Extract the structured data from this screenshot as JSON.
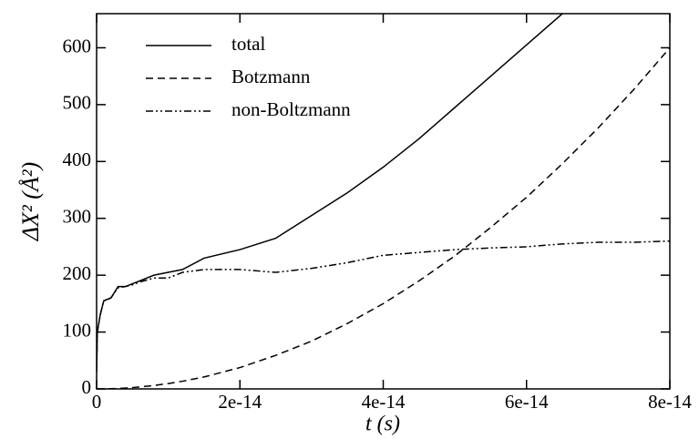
{
  "chart_data": {
    "type": "line",
    "xlabel": "t  (s)",
    "ylabel": "ΔX² (Å²)",
    "x": [
      0,
      1e-16,
      5e-16,
      1e-15,
      2e-15,
      3e-15,
      4e-15,
      5e-15,
      6e-15,
      8e-15,
      1e-14,
      1.2e-14,
      1.5e-14,
      2e-14,
      2.5e-14,
      3e-14,
      3.5e-14,
      4e-14,
      4.5e-14,
      5e-14,
      5.5e-14,
      6e-14,
      6.5e-14,
      7e-14,
      7.5e-14,
      8e-14
    ],
    "series": [
      {
        "name": "total",
        "color": "#000000",
        "dash": "none",
        "values": [
          30,
          100,
          130,
          155,
          160,
          180,
          180,
          185,
          190,
          200,
          205,
          210,
          230,
          245,
          265,
          305,
          345,
          390,
          440,
          495,
          550,
          605,
          660,
          null,
          null,
          null
        ]
      },
      {
        "name": "Botzmann",
        "color": "#000000",
        "dash": "8 5",
        "values": [
          0,
          0,
          0,
          0.1,
          0.4,
          0.8,
          1.5,
          2.3,
          3.4,
          6,
          9.4,
          13.5,
          21,
          37.5,
          59,
          84,
          115,
          150,
          190,
          234,
          284,
          337,
          396,
          459,
          527,
          600
        ]
      },
      {
        "name": "non-Boltzmann",
        "color": "#000000",
        "dash": "8 3 2 3 2 3",
        "values": [
          30,
          100,
          130,
          155,
          160,
          178,
          180,
          183,
          188,
          195,
          195,
          205,
          210,
          210,
          205,
          212,
          222,
          235,
          240,
          245,
          248,
          250,
          255,
          258,
          258,
          260
        ]
      }
    ],
    "xlim": [
      0,
      8e-14
    ],
    "xticks": [
      0,
      2e-14,
      4e-14,
      6e-14,
      8e-14
    ],
    "ylim": [
      0,
      660
    ],
    "yticks": [
      0,
      100,
      200,
      300,
      400,
      500,
      600
    ]
  }
}
